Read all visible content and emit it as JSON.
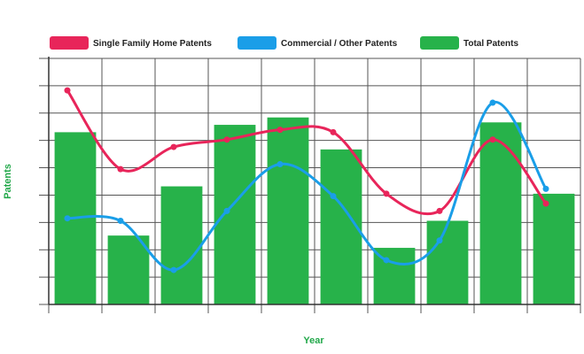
{
  "chart_data": {
    "type": "bar",
    "title": "",
    "xlabel": "Year",
    "ylabel": "Patents",
    "categories": [
      "",
      "",
      "",
      "",
      "",
      "",
      "",
      "",
      "",
      ""
    ],
    "grid": true,
    "legend_position": "top",
    "series": [
      {
        "name": "Single Family Home Patents",
        "type": "line",
        "color": "#e8255a",
        "values": [
          87,
          55,
          64,
          67,
          71,
          70,
          45,
          38,
          67,
          41
        ]
      },
      {
        "name": "Commercial / Other Patents",
        "type": "line",
        "color": "#1a9ee8",
        "values": [
          35,
          34,
          14,
          38,
          57,
          44,
          18,
          26,
          82,
          47
        ]
      },
      {
        "name": "Total Patents",
        "type": "bar",
        "color": "#27b24a",
        "values": [
          70,
          28,
          48,
          73,
          76,
          63,
          23,
          34,
          74,
          45
        ]
      }
    ]
  }
}
